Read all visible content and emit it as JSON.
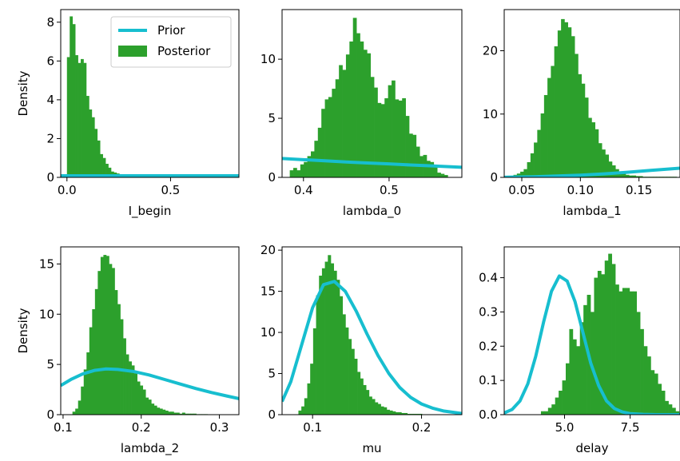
{
  "legend": {
    "entries": [
      {
        "label": "Prior",
        "color": "#17becf",
        "kind": "line"
      },
      {
        "label": "Posterior",
        "color": "#2ca02c",
        "kind": "patch"
      }
    ],
    "placement": "upper-right of first panel"
  },
  "colors": {
    "prior": "#17becf",
    "posterior": "#2ca02c"
  },
  "chart_data": [
    {
      "type": "histogram+line",
      "xlabel": "I_begin",
      "ylabel": "Density",
      "xlim": [
        -0.03,
        0.83
      ],
      "ylim": [
        0,
        8.65
      ],
      "xticks": [
        {
          "v": 0.0,
          "label": "0.0"
        },
        {
          "v": 0.5,
          "label": "0.5"
        }
      ],
      "yticks": [
        {
          "v": 0,
          "label": "0"
        },
        {
          "v": 2,
          "label": "2"
        },
        {
          "v": 4,
          "label": "4"
        },
        {
          "v": 6,
          "label": "6"
        },
        {
          "v": 8,
          "label": "8"
        }
      ],
      "histogram": {
        "bin_start": 0.0,
        "bin_width": 0.0133,
        "heights": [
          6.2,
          8.3,
          7.9,
          6.3,
          5.9,
          6.1,
          5.9,
          4.2,
          3.5,
          3.1,
          2.5,
          1.9,
          1.2,
          1.0,
          0.7,
          0.5,
          0.3,
          0.25,
          0.2,
          0.15,
          0.1,
          0.1,
          0.05,
          0.1,
          0.05,
          0.05,
          0.05
        ]
      },
      "prior": {
        "x": [
          -0.03,
          0.83
        ],
        "y": [
          0.08,
          0.08
        ]
      }
    },
    {
      "type": "histogram+line",
      "xlabel": "lambda_0",
      "ylabel": "",
      "xlim": [
        0.375,
        0.585
      ],
      "ylim": [
        0,
        14.2
      ],
      "xticks": [
        {
          "v": 0.4,
          "label": "0.4"
        },
        {
          "v": 0.5,
          "label": "0.5"
        }
      ],
      "yticks": [
        {
          "v": 0,
          "label": "0"
        },
        {
          "v": 5,
          "label": "5"
        },
        {
          "v": 10,
          "label": "10"
        }
      ],
      "histogram": {
        "bin_start": 0.384,
        "bin_width": 0.0041,
        "heights": [
          0.6,
          0.8,
          0.6,
          1.1,
          1.3,
          1.8,
          2.2,
          3.1,
          4.2,
          5.8,
          6.6,
          6.8,
          7.5,
          8.3,
          9.5,
          9.1,
          10.4,
          11.5,
          13.5,
          12.2,
          11.5,
          10.8,
          10.5,
          8.5,
          7.6,
          6.3,
          6.2,
          6.7,
          7.8,
          8.2,
          6.6,
          6.5,
          6.7,
          5.2,
          3.7,
          3.6,
          2.6,
          1.8,
          1.9,
          1.4,
          1.3,
          1.0,
          0.4,
          0.3,
          0.2
        ]
      },
      "prior": {
        "x": [
          0.375,
          0.4,
          0.425,
          0.45,
          0.475,
          0.5,
          0.525,
          0.55,
          0.585
        ],
        "y": [
          1.6,
          1.5,
          1.4,
          1.3,
          1.22,
          1.14,
          1.05,
          0.97,
          0.85
        ]
      }
    },
    {
      "type": "histogram+line",
      "xlabel": "lambda_1",
      "ylabel": "",
      "xlim": [
        0.035,
        0.185
      ],
      "ylim": [
        0,
        26.5
      ],
      "xticks": [
        {
          "v": 0.05,
          "label": "0.05"
        },
        {
          "v": 0.1,
          "label": "0.10"
        },
        {
          "v": 0.15,
          "label": "0.15"
        }
      ],
      "yticks": [
        {
          "v": 0,
          "label": "0"
        },
        {
          "v": 10,
          "label": "10"
        },
        {
          "v": 20,
          "label": "20"
        }
      ],
      "histogram": {
        "bin_start": 0.04,
        "bin_width": 0.0029,
        "heights": [
          0.2,
          0.4,
          0.6,
          0.9,
          1.3,
          2.4,
          3.8,
          5.5,
          7.5,
          10.1,
          13.0,
          15.7,
          17.6,
          20.7,
          23.2,
          25.0,
          24.5,
          23.7,
          22.3,
          19.5,
          16.3,
          14.8,
          12.6,
          9.4,
          8.7,
          7.6,
          5.4,
          4.4,
          3.6,
          2.5,
          1.9,
          1.3,
          0.9,
          0.8,
          0.4,
          0.3,
          0.3,
          0.2,
          0.2,
          0.1,
          0.1,
          0.1,
          0.1,
          0.1,
          0.1,
          0.1,
          0.1,
          0.1,
          0.1
        ]
      },
      "prior": {
        "x": [
          0.035,
          0.06,
          0.08,
          0.1,
          0.12,
          0.14,
          0.16,
          0.185
        ],
        "y": [
          0.02,
          0.1,
          0.22,
          0.35,
          0.55,
          0.8,
          1.1,
          1.45
        ]
      }
    },
    {
      "type": "histogram+line",
      "xlabel": "lambda_2",
      "ylabel": "Density",
      "xlim": [
        0.097,
        0.325
      ],
      "ylim": [
        0,
        16.7
      ],
      "xticks": [
        {
          "v": 0.1,
          "label": "0.1"
        },
        {
          "v": 0.2,
          "label": "0.2"
        },
        {
          "v": 0.3,
          "label": "0.3"
        }
      ],
      "yticks": [
        {
          "v": 0,
          "label": "0"
        },
        {
          "v": 5,
          "label": "5"
        },
        {
          "v": 10,
          "label": "10"
        },
        {
          "v": 15,
          "label": "15"
        }
      ],
      "histogram": {
        "bin_start": 0.112,
        "bin_width": 0.0036,
        "heights": [
          0.3,
          0.6,
          1.4,
          2.8,
          4.5,
          6.2,
          8.7,
          10.5,
          12.5,
          14.3,
          15.7,
          15.9,
          15.8,
          15.0,
          14.6,
          12.4,
          11.0,
          9.5,
          7.6,
          6.0,
          5.3,
          4.9,
          4.1,
          3.3,
          2.9,
          2.5,
          1.7,
          1.5,
          1.1,
          0.9,
          0.7,
          0.6,
          0.5,
          0.4,
          0.3,
          0.3,
          0.2,
          0.2,
          0.1,
          0.2,
          0.1,
          0.1,
          0.1,
          0.1,
          0.05,
          0.05,
          0.05,
          0.05
        ]
      },
      "prior": {
        "x": [
          0.097,
          0.11,
          0.125,
          0.14,
          0.155,
          0.17,
          0.19,
          0.21,
          0.23,
          0.25,
          0.27,
          0.29,
          0.31,
          0.325
        ],
        "y": [
          2.9,
          3.5,
          4.05,
          4.4,
          4.55,
          4.5,
          4.3,
          3.95,
          3.5,
          3.05,
          2.6,
          2.2,
          1.85,
          1.6
        ]
      }
    },
    {
      "type": "histogram+line",
      "xlabel": "mu",
      "ylabel": "",
      "xlim": [
        0.072,
        0.237
      ],
      "ylim": [
        0,
        20.4
      ],
      "xticks": [
        {
          "v": 0.1,
          "label": "0.1"
        },
        {
          "v": 0.2,
          "label": "0.2"
        }
      ],
      "yticks": [
        {
          "v": 0,
          "label": "0"
        },
        {
          "v": 5,
          "label": "5"
        },
        {
          "v": 10,
          "label": "10"
        },
        {
          "v": 15,
          "label": "15"
        },
        {
          "v": 20,
          "label": "20"
        }
      ],
      "histogram": {
        "bin_start": 0.087,
        "bin_width": 0.0027,
        "heights": [
          0.5,
          1.0,
          2.0,
          3.8,
          6.2,
          10.5,
          14.5,
          16.9,
          17.8,
          18.6,
          19.4,
          18.4,
          17.5,
          16.4,
          14.4,
          12.2,
          10.6,
          9.2,
          8.0,
          6.8,
          5.2,
          4.4,
          3.6,
          3.0,
          2.2,
          1.9,
          1.5,
          1.3,
          1.0,
          0.9,
          0.6,
          0.5,
          0.4,
          0.3,
          0.3,
          0.2,
          0.2,
          0.1,
          0.1,
          0.1,
          0.1,
          0.1,
          0.05,
          0.05,
          0.05,
          0.05,
          0.05,
          0.05
        ]
      },
      "prior": {
        "x": [
          0.072,
          0.08,
          0.09,
          0.1,
          0.11,
          0.12,
          0.13,
          0.14,
          0.15,
          0.16,
          0.17,
          0.18,
          0.19,
          0.2,
          0.21,
          0.22,
          0.237
        ],
        "y": [
          1.6,
          4.0,
          8.5,
          13.0,
          15.8,
          16.2,
          15.0,
          12.6,
          9.8,
          7.2,
          5.0,
          3.3,
          2.1,
          1.3,
          0.8,
          0.45,
          0.15
        ]
      }
    },
    {
      "type": "histogram+line",
      "xlabel": "delay",
      "ylabel": "",
      "xlim": [
        2.7,
        9.4
      ],
      "ylim": [
        0,
        0.49
      ],
      "xticks": [
        {
          "v": 5.0,
          "label": "5.0"
        },
        {
          "v": 7.5,
          "label": "7.5"
        }
      ],
      "yticks": [
        {
          "v": 0.0,
          "label": "0.0"
        },
        {
          "v": 0.1,
          "label": "0.1"
        },
        {
          "v": 0.2,
          "label": "0.2"
        },
        {
          "v": 0.3,
          "label": "0.3"
        },
        {
          "v": 0.4,
          "label": "0.4"
        }
      ],
      "histogram": {
        "bin_start": 4.1,
        "bin_width": 0.135,
        "heights": [
          0.01,
          0.01,
          0.02,
          0.03,
          0.05,
          0.07,
          0.1,
          0.15,
          0.25,
          0.22,
          0.2,
          0.27,
          0.32,
          0.35,
          0.3,
          0.4,
          0.42,
          0.41,
          0.45,
          0.47,
          0.44,
          0.38,
          0.36,
          0.37,
          0.37,
          0.36,
          0.36,
          0.3,
          0.25,
          0.2,
          0.17,
          0.13,
          0.12,
          0.09,
          0.07,
          0.04,
          0.03,
          0.02,
          0.01
        ]
      },
      "prior": {
        "x": [
          2.7,
          3.0,
          3.3,
          3.6,
          3.9,
          4.2,
          4.5,
          4.8,
          5.1,
          5.4,
          5.7,
          6.0,
          6.3,
          6.6,
          6.9,
          7.2,
          7.5,
          8.0,
          8.5,
          9.4
        ],
        "y": [
          0.005,
          0.015,
          0.04,
          0.09,
          0.17,
          0.27,
          0.36,
          0.405,
          0.39,
          0.33,
          0.24,
          0.15,
          0.085,
          0.04,
          0.018,
          0.008,
          0.003,
          0.001,
          0.0,
          0.0
        ]
      }
    }
  ]
}
